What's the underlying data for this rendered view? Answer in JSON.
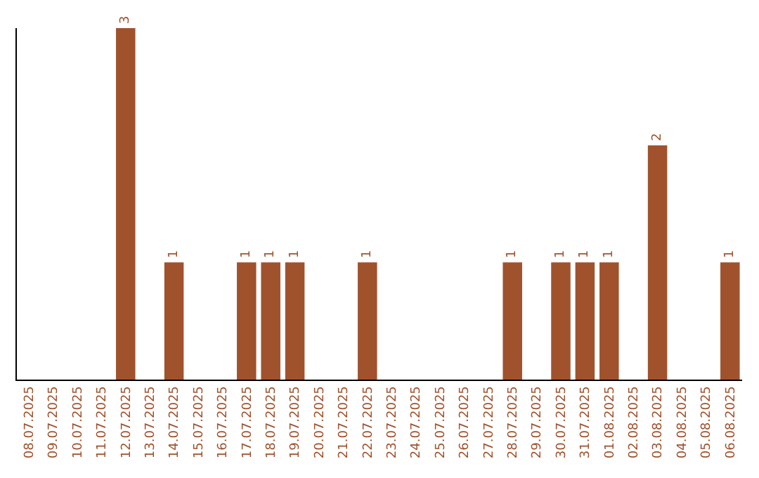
{
  "chart_data": {
    "type": "bar",
    "categories": [
      "08.07.2025",
      "09.07.2025",
      "10.07.2025",
      "11.07.2025",
      "12.07.2025",
      "13.07.2025",
      "14.07.2025",
      "15.07.2025",
      "16.07.2025",
      "17.07.2025",
      "18.07.2025",
      "19.07.2025",
      "20.07.2025",
      "21.07.2025",
      "22.07.2025",
      "23.07.2025",
      "24.07.2025",
      "25.07.2025",
      "26.07.2025",
      "27.07.2025",
      "28.07.2025",
      "29.07.2025",
      "30.07.2025",
      "31.07.2025",
      "01.08.2025",
      "02.08.2025",
      "03.08.2025",
      "04.08.2025",
      "05.08.2025",
      "06.08.2025"
    ],
    "values": [
      0,
      0,
      0,
      0,
      3,
      0,
      1,
      0,
      0,
      1,
      1,
      1,
      0,
      0,
      1,
      0,
      0,
      0,
      0,
      0,
      1,
      0,
      1,
      1,
      1,
      0,
      2,
      0,
      0,
      1
    ],
    "value_labels": [
      null,
      null,
      null,
      null,
      "3",
      null,
      "1",
      null,
      null,
      "1",
      "1",
      "1",
      null,
      null,
      "1",
      null,
      null,
      null,
      null,
      null,
      "1",
      null,
      "1",
      "1",
      "1",
      null,
      "2",
      null,
      null,
      "1"
    ],
    "color": "#a0522d",
    "ylim": [
      0,
      3
    ]
  }
}
